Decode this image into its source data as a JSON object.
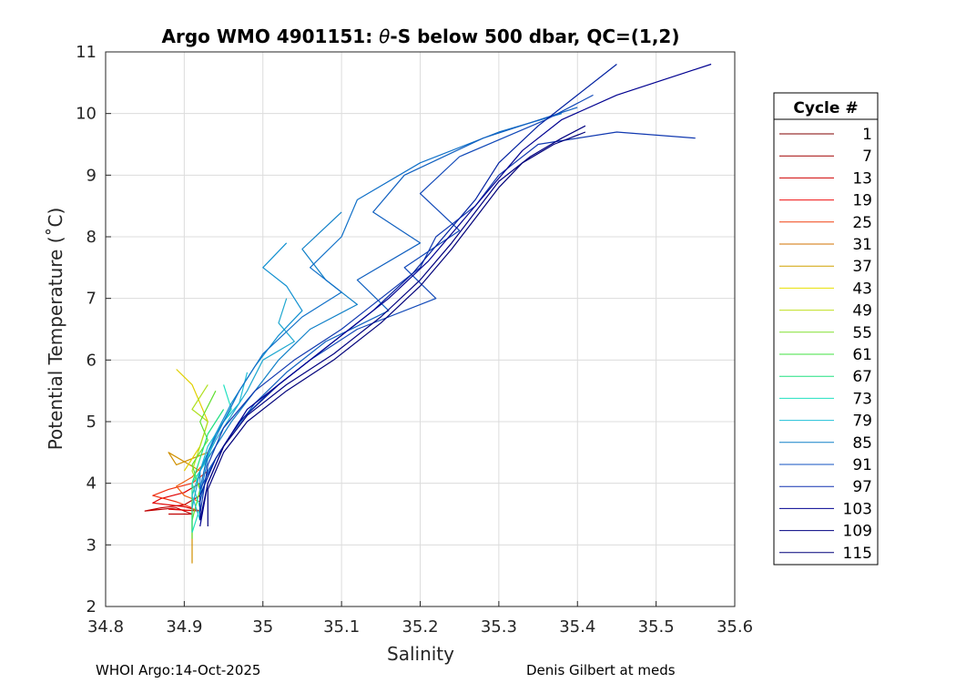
{
  "chart_data": {
    "type": "line",
    "title_prefix": "Argo WMO 4901151: ",
    "title_theta": "θ",
    "title_suffix": "-S below 500 dbar,  QC=(1,2)",
    "xlabel": "Salinity",
    "ylabel": "Potential Temperature (˚C)",
    "xlim": [
      34.8,
      35.6
    ],
    "ylim": [
      2,
      11
    ],
    "xticks": [
      "34.8",
      "34.9",
      "35",
      "35.1",
      "35.2",
      "35.3",
      "35.4",
      "35.5",
      "35.6"
    ],
    "yticks": [
      "2",
      "3",
      "4",
      "5",
      "6",
      "7",
      "8",
      "9",
      "10",
      "11"
    ],
    "grid": true,
    "legend_title": "Cycle #",
    "legend_placement": "outside-right",
    "legend": [
      {
        "label": "1",
        "color": "#800000"
      },
      {
        "label": "7",
        "color": "#a00000"
      },
      {
        "label": "13",
        "color": "#d00000"
      },
      {
        "label": "19",
        "color": "#f01010"
      },
      {
        "label": "25",
        "color": "#f04010"
      },
      {
        "label": "31",
        "color": "#d07000"
      },
      {
        "label": "37",
        "color": "#d0a000"
      },
      {
        "label": "43",
        "color": "#e8e000"
      },
      {
        "label": "49",
        "color": "#c0e020"
      },
      {
        "label": "55",
        "color": "#80e030"
      },
      {
        "label": "61",
        "color": "#40e040"
      },
      {
        "label": "67",
        "color": "#20e080"
      },
      {
        "label": "73",
        "color": "#20e0c0"
      },
      {
        "label": "79",
        "color": "#20c0d8"
      },
      {
        "label": "85",
        "color": "#1080c8"
      },
      {
        "label": "91",
        "color": "#1050c0"
      },
      {
        "label": "97",
        "color": "#1030b0"
      },
      {
        "label": "103",
        "color": "#000090"
      },
      {
        "label": "109",
        "color": "#000080"
      },
      {
        "label": "115",
        "color": "#00007a"
      }
    ],
    "series": [
      {
        "color": "#c00000",
        "points": [
          [
            34.92,
            3.8
          ],
          [
            34.9,
            3.65
          ],
          [
            34.87,
            3.6
          ],
          [
            34.85,
            3.55
          ],
          [
            34.89,
            3.6
          ],
          [
            34.91,
            3.5
          ],
          [
            34.88,
            3.5
          ]
        ]
      },
      {
        "color": "#e00000",
        "points": [
          [
            34.92,
            4.0
          ],
          [
            34.9,
            3.85
          ],
          [
            34.87,
            3.75
          ],
          [
            34.86,
            3.68
          ],
          [
            34.9,
            3.62
          ],
          [
            34.92,
            3.55
          ],
          [
            34.88,
            3.58
          ]
        ]
      },
      {
        "color": "#f03010",
        "points": [
          [
            34.93,
            4.2
          ],
          [
            34.91,
            4.0
          ],
          [
            34.88,
            3.9
          ],
          [
            34.86,
            3.8
          ],
          [
            34.89,
            3.7
          ],
          [
            34.91,
            3.6
          ]
        ]
      },
      {
        "color": "#f06010",
        "points": [
          [
            34.93,
            4.4
          ],
          [
            34.91,
            4.1
          ],
          [
            34.89,
            3.95
          ],
          [
            34.9,
            3.8
          ],
          [
            34.92,
            3.7
          ]
        ]
      },
      {
        "color": "#d09000",
        "points": [
          [
            34.93,
            4.5
          ],
          [
            34.89,
            4.3
          ],
          [
            34.88,
            4.5
          ],
          [
            34.92,
            4.2
          ],
          [
            34.91,
            3.8
          ],
          [
            34.91,
            3.3
          ],
          [
            34.91,
            2.7
          ]
        ]
      },
      {
        "color": "#e0d000",
        "points": [
          [
            34.89,
            5.85
          ],
          [
            34.91,
            5.6
          ],
          [
            34.92,
            5.3
          ],
          [
            34.93,
            5.0
          ],
          [
            34.92,
            4.6
          ],
          [
            34.9,
            4.2
          ]
        ]
      },
      {
        "color": "#b0e020",
        "points": [
          [
            34.93,
            5.6
          ],
          [
            34.91,
            5.2
          ],
          [
            34.93,
            5.0
          ],
          [
            34.92,
            4.6
          ],
          [
            34.91,
            4.2
          ],
          [
            34.92,
            3.9
          ]
        ]
      },
      {
        "color": "#60e030",
        "points": [
          [
            34.94,
            5.5
          ],
          [
            34.92,
            5.0
          ],
          [
            34.93,
            4.7
          ],
          [
            34.91,
            4.3
          ],
          [
            34.92,
            3.9
          ],
          [
            34.91,
            3.4
          ],
          [
            34.91,
            3.1
          ]
        ]
      },
      {
        "color": "#20e080",
        "points": [
          [
            34.95,
            5.2
          ],
          [
            34.93,
            4.8
          ],
          [
            34.92,
            4.4
          ],
          [
            34.91,
            4.0
          ],
          [
            34.91,
            3.6
          ],
          [
            34.91,
            3.2
          ]
        ]
      },
      {
        "color": "#20e0c0",
        "points": [
          [
            34.95,
            5.6
          ],
          [
            34.96,
            5.2
          ],
          [
            34.94,
            4.8
          ],
          [
            34.93,
            4.4
          ],
          [
            34.91,
            4.0
          ],
          [
            34.92,
            3.6
          ],
          [
            34.91,
            3.2
          ]
        ]
      },
      {
        "color": "#20c0d8",
        "points": [
          [
            34.98,
            5.8
          ],
          [
            34.97,
            5.3
          ],
          [
            34.95,
            5.0
          ],
          [
            34.93,
            4.6
          ],
          [
            34.92,
            4.2
          ],
          [
            34.91,
            3.8
          ],
          [
            34.92,
            3.4
          ]
        ]
      },
      {
        "color": "#20a8d0",
        "points": [
          [
            35.03,
            7.0
          ],
          [
            35.02,
            6.6
          ],
          [
            35.04,
            6.3
          ],
          [
            35.0,
            6.0
          ],
          [
            34.98,
            5.5
          ],
          [
            34.96,
            5.1
          ],
          [
            34.94,
            4.7
          ],
          [
            34.92,
            4.2
          ],
          [
            34.91,
            3.6
          ]
        ]
      },
      {
        "color": "#1090d0",
        "points": [
          [
            35.03,
            7.9
          ],
          [
            35.0,
            7.5
          ],
          [
            35.03,
            7.2
          ],
          [
            35.05,
            6.8
          ],
          [
            35.02,
            6.4
          ],
          [
            34.99,
            5.9
          ],
          [
            34.96,
            5.3
          ],
          [
            34.94,
            4.8
          ],
          [
            34.92,
            4.2
          ],
          [
            34.92,
            3.6
          ]
        ]
      },
      {
        "color": "#1080c8",
        "points": [
          [
            35.1,
            8.4
          ],
          [
            35.05,
            7.8
          ],
          [
            35.08,
            7.3
          ],
          [
            35.12,
            6.9
          ],
          [
            35.06,
            6.5
          ],
          [
            35.02,
            6.0
          ],
          [
            34.99,
            5.5
          ],
          [
            34.96,
            5.0
          ],
          [
            34.93,
            4.4
          ],
          [
            34.92,
            3.8
          ]
        ]
      },
      {
        "color": "#1070c8",
        "points": [
          [
            35.38,
            10.0
          ],
          [
            35.3,
            9.7
          ],
          [
            35.2,
            9.2
          ],
          [
            35.12,
            8.6
          ],
          [
            35.1,
            8.0
          ],
          [
            35.06,
            7.5
          ],
          [
            35.1,
            7.1
          ],
          [
            35.05,
            6.7
          ],
          [
            35.0,
            6.1
          ],
          [
            34.97,
            5.5
          ],
          [
            34.95,
            5.0
          ],
          [
            34.93,
            4.5
          ],
          [
            34.92,
            3.9
          ]
        ]
      },
      {
        "color": "#1060c0",
        "points": [
          [
            35.4,
            10.1
          ],
          [
            35.28,
            9.6
          ],
          [
            35.18,
            9.0
          ],
          [
            35.14,
            8.4
          ],
          [
            35.2,
            7.9
          ],
          [
            35.12,
            7.3
          ],
          [
            35.16,
            6.8
          ],
          [
            35.08,
            6.3
          ],
          [
            35.03,
            5.8
          ],
          [
            34.99,
            5.3
          ],
          [
            34.96,
            4.8
          ],
          [
            34.93,
            4.2
          ],
          [
            34.92,
            3.7
          ]
        ]
      },
      {
        "color": "#1048b8",
        "points": [
          [
            35.42,
            10.3
          ],
          [
            35.36,
            9.9
          ],
          [
            35.25,
            9.3
          ],
          [
            35.2,
            8.7
          ],
          [
            35.25,
            8.1
          ],
          [
            35.18,
            7.5
          ],
          [
            35.22,
            7.0
          ],
          [
            35.12,
            6.5
          ],
          [
            35.06,
            6.0
          ],
          [
            35.01,
            5.5
          ],
          [
            34.97,
            5.0
          ],
          [
            34.94,
            4.4
          ],
          [
            34.92,
            3.9
          ]
        ]
      },
      {
        "color": "#1038b0",
        "points": [
          [
            35.55,
            9.6
          ],
          [
            35.45,
            9.7
          ],
          [
            35.35,
            9.5
          ],
          [
            35.3,
            9.0
          ],
          [
            35.27,
            8.5
          ],
          [
            35.22,
            8.0
          ],
          [
            35.2,
            7.5
          ],
          [
            35.15,
            7.0
          ],
          [
            35.1,
            6.5
          ],
          [
            35.04,
            6.0
          ],
          [
            34.99,
            5.5
          ],
          [
            34.95,
            4.9
          ],
          [
            34.93,
            4.3
          ],
          [
            34.92,
            3.5
          ]
        ]
      },
      {
        "color": "#0020a0",
        "points": [
          [
            35.45,
            10.8
          ],
          [
            35.4,
            10.3
          ],
          [
            35.35,
            9.8
          ],
          [
            35.3,
            9.2
          ],
          [
            35.27,
            8.6
          ],
          [
            35.23,
            8.0
          ],
          [
            35.19,
            7.4
          ],
          [
            35.14,
            6.8
          ],
          [
            35.08,
            6.2
          ],
          [
            35.02,
            5.6
          ],
          [
            34.97,
            5.0
          ],
          [
            34.94,
            4.4
          ],
          [
            34.92,
            3.8
          ],
          [
            34.92,
            3.4
          ]
        ]
      },
      {
        "color": "#000090",
        "points": [
          [
            35.57,
            10.8
          ],
          [
            35.45,
            10.3
          ],
          [
            35.38,
            9.9
          ],
          [
            35.33,
            9.4
          ],
          [
            35.29,
            8.8
          ],
          [
            35.25,
            8.2
          ],
          [
            35.21,
            7.6
          ],
          [
            35.16,
            7.0
          ],
          [
            35.1,
            6.4
          ],
          [
            35.04,
            5.8
          ],
          [
            34.98,
            5.2
          ],
          [
            34.95,
            4.6
          ],
          [
            34.93,
            4.0
          ],
          [
            34.92,
            3.3
          ]
        ]
      },
      {
        "color": "#000080",
        "points": [
          [
            35.41,
            9.8
          ],
          [
            35.38,
            9.6
          ],
          [
            35.34,
            9.3
          ],
          [
            35.3,
            8.9
          ],
          [
            35.27,
            8.4
          ],
          [
            35.24,
            7.9
          ],
          [
            35.2,
            7.3
          ],
          [
            35.15,
            6.7
          ],
          [
            35.09,
            6.1
          ],
          [
            35.03,
            5.6
          ],
          [
            34.98,
            5.1
          ],
          [
            34.95,
            4.6
          ],
          [
            34.93,
            4.0
          ],
          [
            34.92,
            3.4
          ]
        ]
      },
      {
        "color": "#00007a",
        "points": [
          [
            35.41,
            9.7
          ],
          [
            35.37,
            9.5
          ],
          [
            35.33,
            9.2
          ],
          [
            35.3,
            8.8
          ],
          [
            35.27,
            8.3
          ],
          [
            35.24,
            7.8
          ],
          [
            35.2,
            7.2
          ],
          [
            35.15,
            6.6
          ],
          [
            35.09,
            6.0
          ],
          [
            35.03,
            5.5
          ],
          [
            34.98,
            5.0
          ],
          [
            34.95,
            4.5
          ],
          [
            34.93,
            3.9
          ],
          [
            34.93,
            3.3
          ]
        ]
      }
    ]
  },
  "footer": {
    "left": "WHOI Argo:14-Oct-2025",
    "right": "Denis Gilbert at meds"
  }
}
